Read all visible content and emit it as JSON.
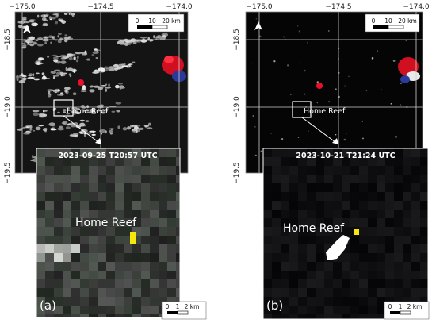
{
  "panels": [
    {
      "id": "a",
      "label": "(a)",
      "timestamp": "2023-09-25 T20:57 UTC",
      "place_label": "Home Reef",
      "top_ticks": [
        "−175.0",
        "−174.5",
        "−174.0"
      ],
      "left_ticks": [
        "−18.5",
        "−19.0",
        "−19.5"
      ],
      "overview_scale": {
        "ticks": [
          "0",
          "10",
          "20 km"
        ]
      },
      "inset_scale": {
        "ticks": [
          "0",
          "1",
          "2 km"
        ]
      },
      "north_arrow": "north-arrow-icon",
      "colors": {
        "thermal_hotspot": "#e8102a",
        "water": "#000000"
      }
    },
    {
      "id": "b",
      "label": "(b)",
      "timestamp": "2023-10-21 T21:24 UTC",
      "place_label": "Home Reef",
      "top_ticks": [
        "−175.0",
        "−174.5",
        "−174.0"
      ],
      "left_ticks": [
        "−18.5",
        "−19.0",
        "−19.5"
      ],
      "overview_scale": {
        "ticks": [
          "0",
          "10",
          "20 km"
        ]
      },
      "inset_scale": {
        "ticks": [
          "0",
          "1",
          "2 km"
        ]
      },
      "north_arrow": "north-arrow-icon",
      "colors": {
        "thermal_hotspot": "#e8102a",
        "new_land": "#ffffff"
      }
    }
  ]
}
